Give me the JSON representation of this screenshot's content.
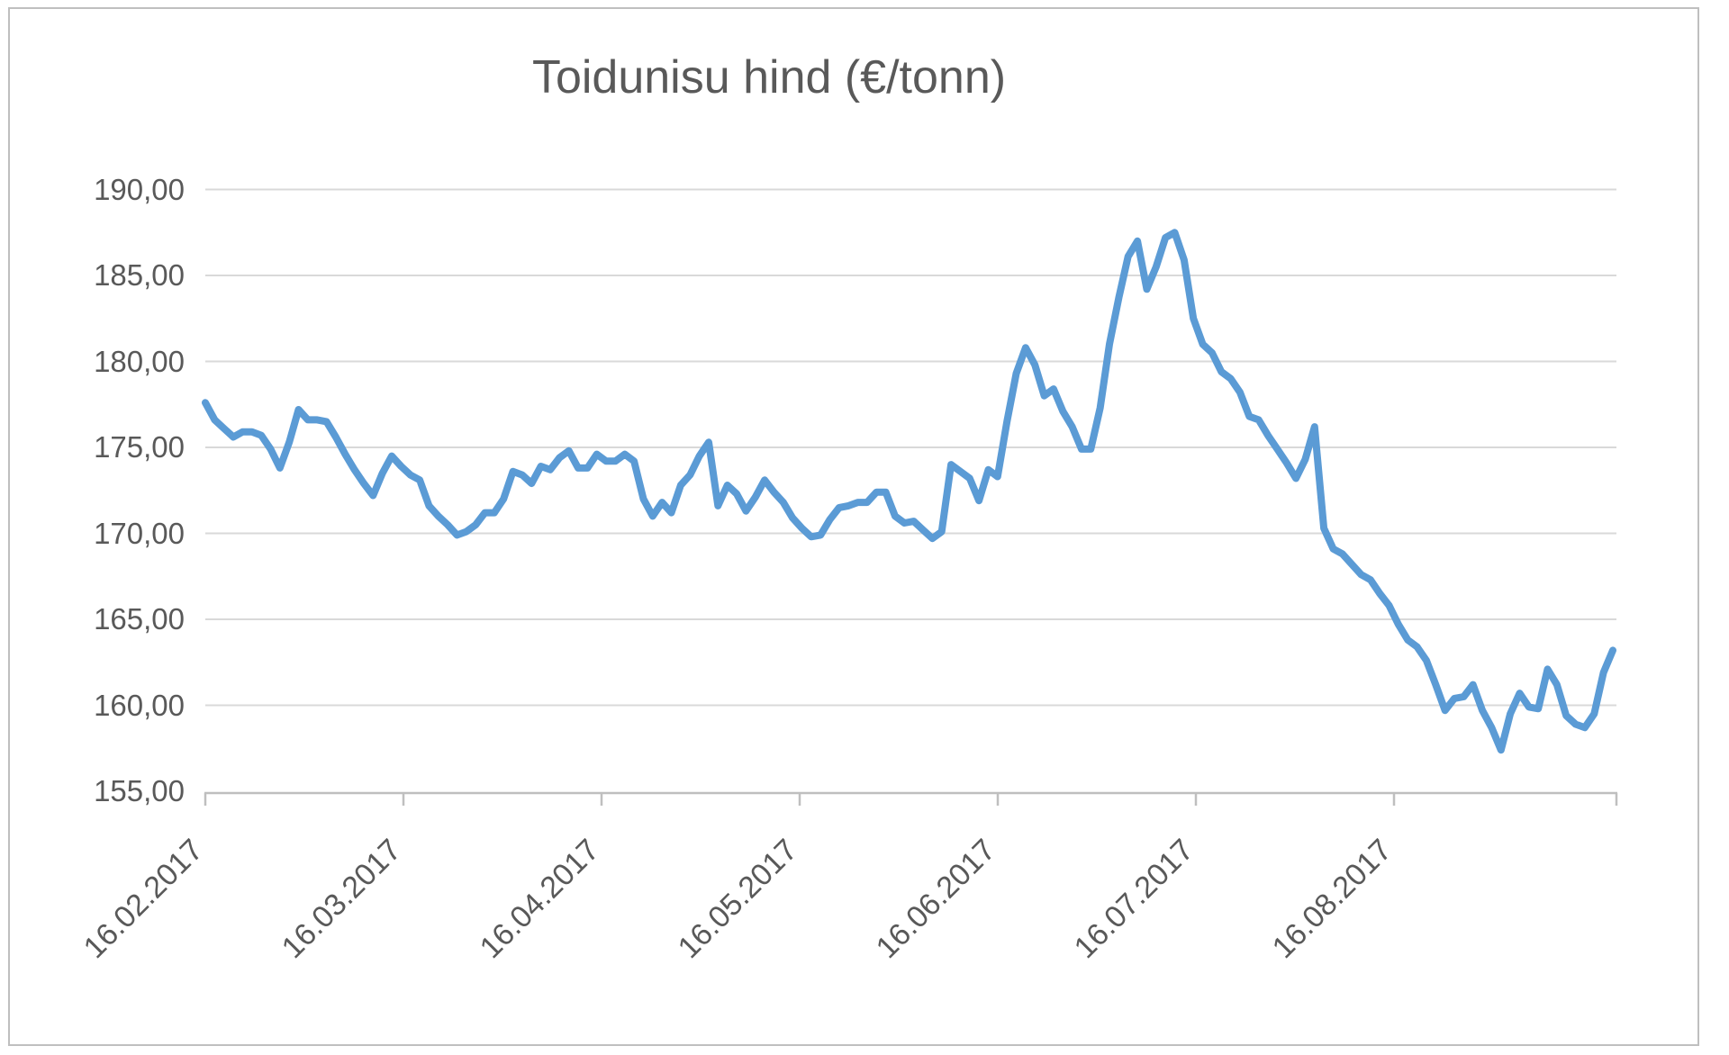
{
  "title": "Toidunisu hind (€/tonn)",
  "colors": {
    "line": "#5B9BD5",
    "title_text": "#595959",
    "axis_text": "#595959",
    "gridline": "#D9D9D9",
    "axis_line": "#BFBFBF",
    "border": "#BFBFBF",
    "background": "#FFFFFF"
  },
  "chart_data": {
    "type": "line",
    "title": "Toidunisu hind (€/tonn)",
    "ylabel": "",
    "xlabel": "",
    "ylim": [
      155,
      190
    ],
    "y_major_unit": 5,
    "y_tick_labels": [
      "190,00",
      "185,00",
      "180,00",
      "175,00",
      "170,00",
      "165,00",
      "160,00",
      "155,00"
    ],
    "x_tick_labels": [
      "16.02.2017",
      "16.03.2017",
      "16.04.2017",
      "16.05.2017",
      "16.06.2017",
      "16.07.2017",
      "16.08.2017"
    ],
    "grid": "horizontal",
    "legend": "none",
    "series": [
      {
        "name": "Toidunisu hind (€/tonn)",
        "values": [
          177.6,
          176.6,
          176.1,
          175.6,
          175.9,
          175.9,
          175.7,
          174.9,
          173.8,
          175.3,
          177.2,
          176.6,
          176.6,
          176.5,
          175.6,
          174.6,
          173.7,
          172.9,
          172.2,
          173.5,
          174.5,
          173.9,
          173.4,
          173.1,
          171.6,
          171.0,
          170.5,
          169.9,
          170.1,
          170.5,
          171.2,
          171.2,
          172.0,
          173.6,
          173.4,
          172.9,
          173.9,
          173.7,
          174.4,
          174.8,
          173.8,
          173.8,
          174.6,
          174.2,
          174.2,
          174.6,
          174.2,
          172.0,
          171.0,
          171.8,
          171.2,
          172.8,
          173.4,
          174.5,
          175.3,
          171.6,
          172.8,
          172.3,
          171.3,
          172.1,
          173.1,
          172.4,
          171.8,
          170.9,
          170.3,
          169.8,
          169.9,
          170.8,
          171.5,
          171.6,
          171.8,
          171.8,
          172.4,
          172.4,
          171.0,
          170.6,
          170.7,
          170.2,
          169.7,
          170.1,
          174.0,
          173.6,
          173.2,
          171.9,
          173.7,
          173.3,
          176.5,
          179.3,
          180.8,
          179.8,
          178.0,
          178.4,
          177.1,
          176.2,
          174.9,
          174.9,
          177.3,
          181.0,
          183.7,
          186.1,
          187.0,
          184.2,
          185.5,
          187.2,
          187.5,
          185.9,
          182.5,
          181.0,
          180.5,
          179.4,
          179.0,
          178.2,
          176.8,
          176.6,
          175.7,
          174.9,
          174.1,
          173.2,
          174.3,
          176.2,
          170.3,
          169.1,
          168.8,
          168.2,
          167.6,
          167.3,
          166.5,
          165.8,
          164.7,
          163.8,
          163.4,
          162.6,
          161.2,
          159.7,
          160.4,
          160.5,
          161.2,
          159.7,
          158.7,
          157.4,
          159.5,
          160.7,
          159.9,
          159.8,
          162.1,
          161.2,
          159.4,
          158.9,
          158.7,
          159.5,
          161.9,
          163.2
        ]
      }
    ]
  }
}
